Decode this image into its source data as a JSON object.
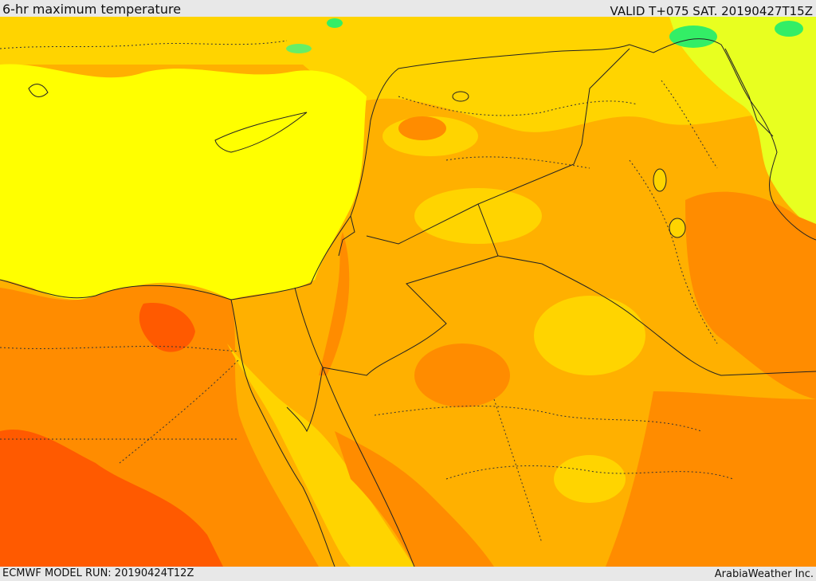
{
  "header": {
    "title": "6-hr maximum temperature",
    "valid": "VALID T+075 SAT. 20190427T15Z"
  },
  "footer": {
    "model_run": "ECMWF MODEL RUN: 20190424T12Z",
    "credit": "ArabiaWeather Inc."
  },
  "colors": {
    "sea": "#ffff00",
    "warm": "#ffd400",
    "warmer": "#ffb000",
    "hot": "#ff8c00",
    "hotter": "#ff5a00",
    "cool": "#c8ff30",
    "cold": "#33ee66",
    "border_line": "#222222"
  }
}
